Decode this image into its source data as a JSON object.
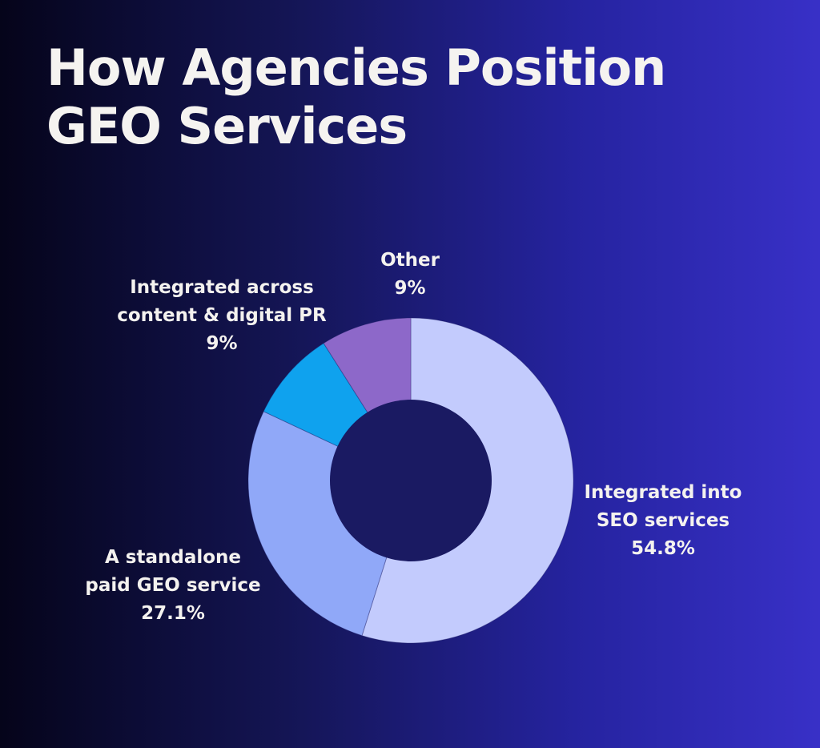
{
  "title": {
    "line1": "How Agencies Position",
    "line2": "GEO Services"
  },
  "colors": {
    "background_left": "#05041a",
    "background_right": "#3830c7",
    "donut_hole": "#1a1a62",
    "text": "#f4f2ef"
  },
  "chart_data": {
    "type": "pie",
    "variant": "donut",
    "title": "How Agencies Position GEO Services",
    "start_angle": "12 o'clock",
    "direction": "clockwise",
    "legend": "none (direct labels)",
    "slices": [
      {
        "label_lines": [
          "Integrated into",
          "SEO services"
        ],
        "value_text": "54.8%",
        "value": 54.8,
        "color": "#c3cbfd"
      },
      {
        "label_lines": [
          "A standalone",
          "paid GEO service"
        ],
        "value_text": "27.1%",
        "value": 27.1,
        "color": "#90a8f8"
      },
      {
        "label_lines": [
          "Integrated across",
          "content & digital PR"
        ],
        "value_text": "9%",
        "value": 9,
        "color": "#0fa2ee"
      },
      {
        "label_lines": [
          "Other"
        ],
        "value_text": "9%",
        "value": 9,
        "color": "#8d68c9"
      }
    ]
  }
}
